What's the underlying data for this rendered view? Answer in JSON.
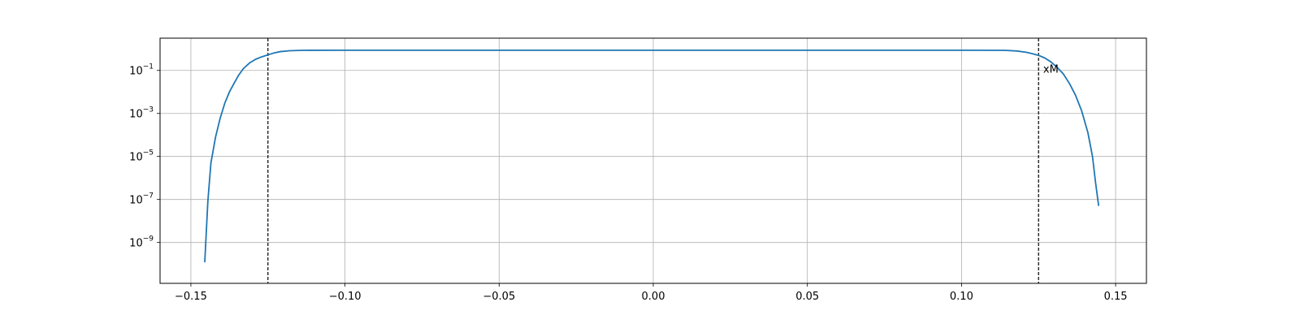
{
  "chart_data": {
    "type": "line",
    "title": "",
    "xlabel": "",
    "ylabel": "",
    "xlim": [
      -0.16,
      0.16
    ],
    "ylim_log10": [
      -10.9,
      0.5
    ],
    "yscale": "log",
    "grid": true,
    "legend": "none",
    "x_ticks": [
      {
        "value": -0.15,
        "label": "−0.15"
      },
      {
        "value": -0.1,
        "label": "−0.10"
      },
      {
        "value": -0.05,
        "label": "−0.05"
      },
      {
        "value": 0.0,
        "label": "0.00"
      },
      {
        "value": 0.05,
        "label": "0.05"
      },
      {
        "value": 0.1,
        "label": "0.10"
      },
      {
        "value": 0.15,
        "label": "0.15"
      }
    ],
    "y_ticks": [
      {
        "value": 1e-09,
        "base": "10",
        "exp": "−9"
      },
      {
        "value": 1e-07,
        "base": "10",
        "exp": "−7"
      },
      {
        "value": 1e-05,
        "base": "10",
        "exp": "−5"
      },
      {
        "value": 0.001,
        "base": "10",
        "exp": "−3"
      },
      {
        "value": 0.1,
        "base": "10",
        "exp": "−1"
      }
    ],
    "vlines": [
      {
        "x": -0.125,
        "style": "dashed",
        "color": "#000000"
      },
      {
        "x": 0.125,
        "style": "dashed",
        "color": "#000000"
      }
    ],
    "annotations": [
      {
        "text": "xM",
        "x": 0.1265,
        "y": 0.12
      }
    ],
    "series": [
      {
        "color": "#1f77b4",
        "points": [
          [
            -0.1455,
            1.2e-10
          ],
          [
            -0.1445,
            8e-08
          ],
          [
            -0.1435,
            5e-06
          ],
          [
            -0.142,
            8e-05
          ],
          [
            -0.1405,
            0.0006
          ],
          [
            -0.139,
            0.003
          ],
          [
            -0.1375,
            0.01
          ],
          [
            -0.136,
            0.025
          ],
          [
            -0.1345,
            0.06
          ],
          [
            -0.133,
            0.12
          ],
          [
            -0.131,
            0.22
          ],
          [
            -0.129,
            0.33
          ],
          [
            -0.127,
            0.43
          ],
          [
            -0.125,
            0.53
          ],
          [
            -0.123,
            0.65
          ],
          [
            -0.121,
            0.75
          ],
          [
            -0.118,
            0.82
          ],
          [
            -0.114,
            0.86
          ],
          [
            -0.1,
            0.87
          ],
          [
            0.0,
            0.87
          ],
          [
            0.1,
            0.87
          ],
          [
            0.114,
            0.86
          ],
          [
            0.118,
            0.8
          ],
          [
            0.121,
            0.7
          ],
          [
            0.123,
            0.6
          ],
          [
            0.125,
            0.5
          ],
          [
            0.127,
            0.38
          ],
          [
            0.129,
            0.25
          ],
          [
            0.131,
            0.14
          ],
          [
            0.133,
            0.07
          ],
          [
            0.135,
            0.025
          ],
          [
            0.137,
            0.007
          ],
          [
            0.139,
            0.0013
          ],
          [
            0.141,
            0.00013
          ],
          [
            0.1425,
            1e-05
          ],
          [
            0.1435,
            6e-07
          ],
          [
            0.1445,
            5e-08
          ]
        ]
      }
    ]
  }
}
